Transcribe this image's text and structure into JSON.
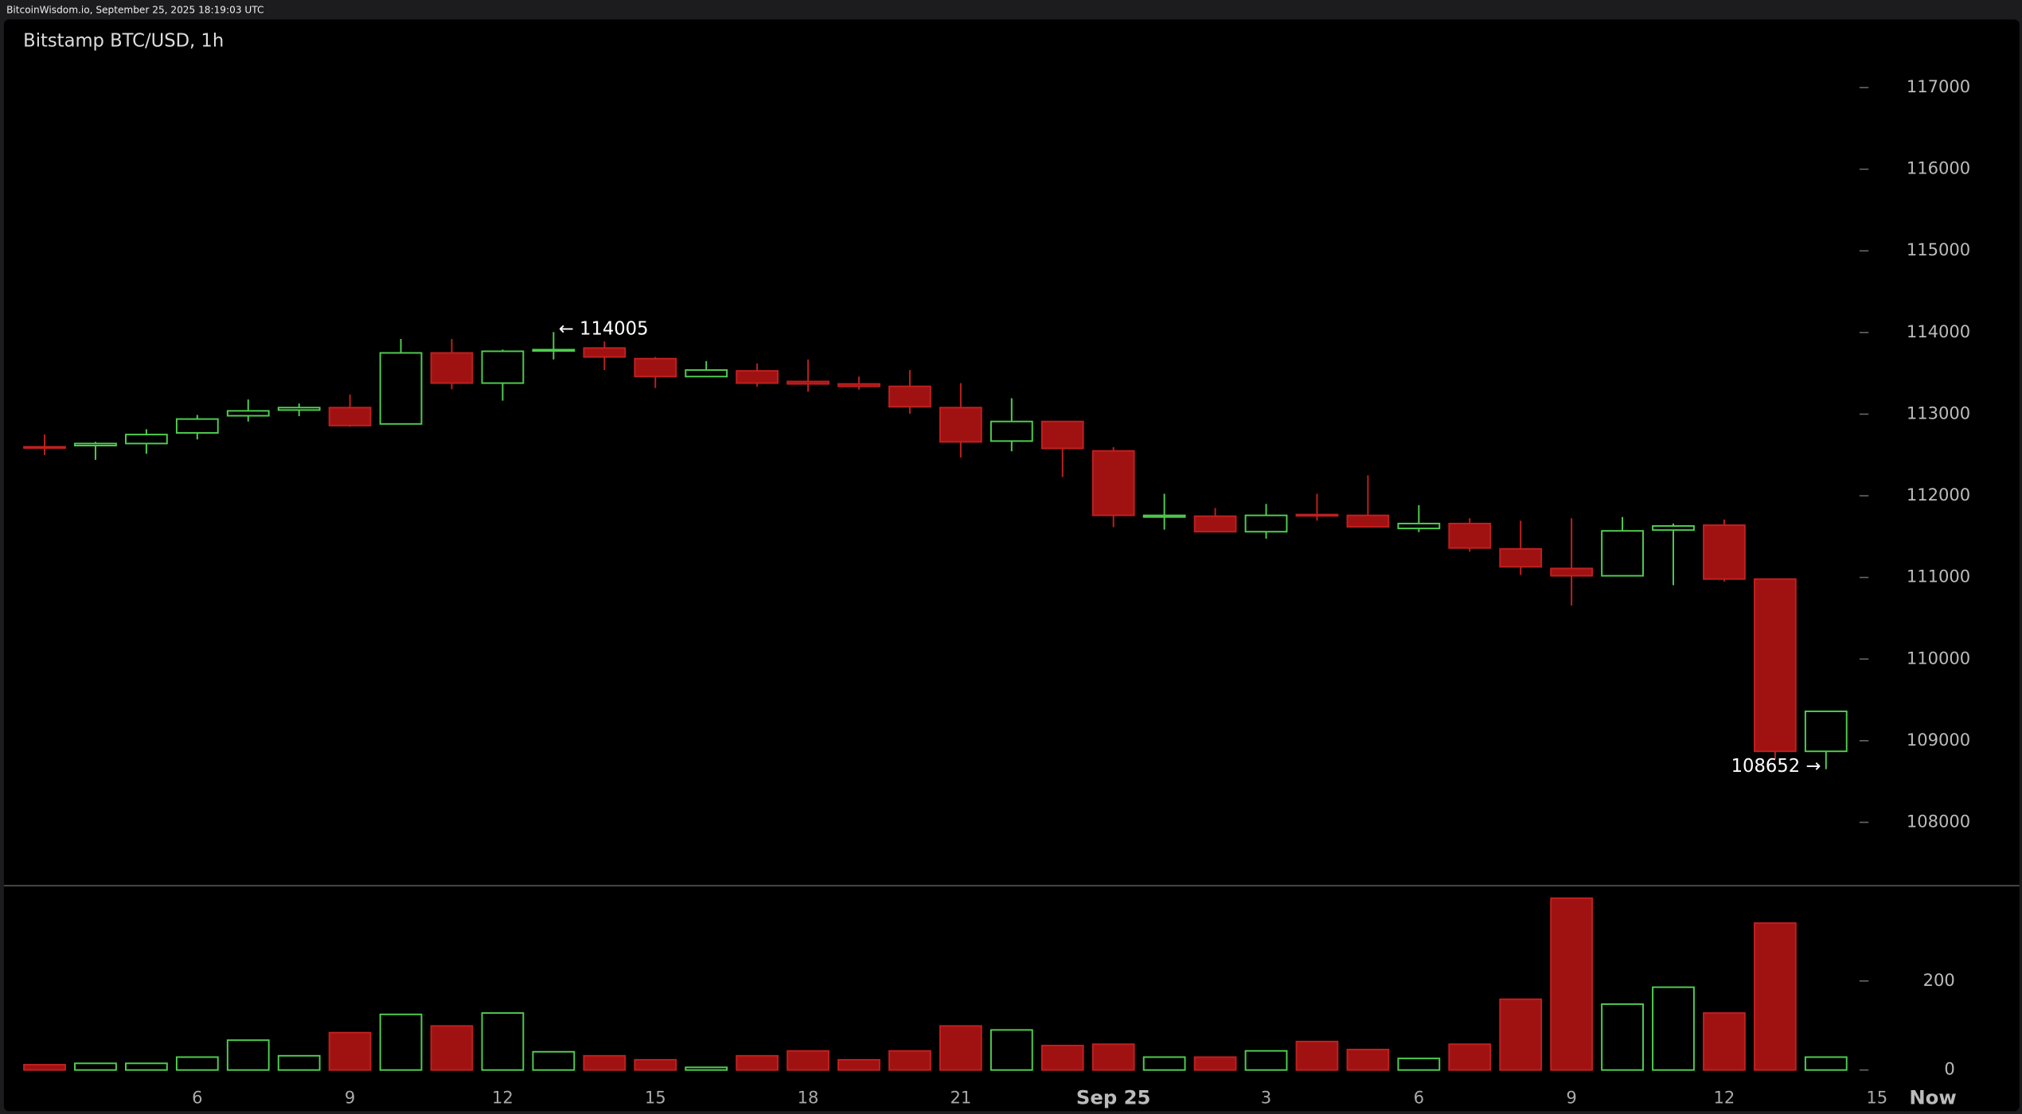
{
  "header": "BitcoinWisdom.io, September 25, 2025 18:19:03 UTC",
  "chart_data": [
    {
      "type": "candlestick",
      "title": "Bitstamp BTC/USD, 1h",
      "x": [
        3,
        4,
        5,
        6,
        7,
        8,
        9,
        10,
        11,
        12,
        13,
        14,
        15,
        16,
        17,
        18,
        19,
        20,
        21,
        22,
        23,
        24,
        25,
        26,
        27,
        28,
        29,
        30,
        31,
        32,
        33,
        34,
        35,
        36,
        37,
        38
      ],
      "open": [
        112600,
        112615,
        112640,
        112770,
        112980,
        113050,
        113080,
        112880,
        113750,
        113380,
        113775,
        113810,
        113680,
        113460,
        113530,
        113400,
        113370,
        113340,
        113080,
        112670,
        112910,
        112550,
        111740,
        111750,
        111560,
        111770,
        111760,
        111600,
        111660,
        111350,
        111110,
        111020,
        111580,
        111640,
        110980,
        108870
      ],
      "high": [
        112750,
        112660,
        112815,
        112990,
        113180,
        113130,
        113240,
        113920,
        113920,
        113790,
        114005,
        113890,
        113700,
        113650,
        113620,
        113670,
        113460,
        113540,
        113380,
        113195,
        112910,
        112595,
        112025,
        111850,
        111900,
        112025,
        112250,
        111885,
        111725,
        111695,
        111725,
        111740,
        111660,
        111710,
        110980,
        109360
      ],
      "low": [
        112500,
        112440,
        112515,
        112690,
        112910,
        112975,
        112845,
        112880,
        113305,
        113165,
        113670,
        113540,
        113320,
        113460,
        113335,
        113275,
        113300,
        113005,
        112470,
        112545,
        112230,
        111615,
        111585,
        111560,
        111475,
        111695,
        111620,
        111555,
        111315,
        111030,
        110655,
        111020,
        110905,
        110950,
        108775,
        108652
      ],
      "close": [
        112590,
        112640,
        112750,
        112940,
        113040,
        113080,
        112860,
        113750,
        113380,
        113770,
        113790,
        113700,
        113460,
        113540,
        113380,
        113370,
        113340,
        113090,
        112660,
        112910,
        112580,
        111760,
        111760,
        111560,
        111760,
        111760,
        111620,
        111660,
        111360,
        111130,
        111020,
        111570,
        111630,
        110980,
        108870,
        109360
      ],
      "up_color": "#4fcf4f",
      "down_color": "#a01212",
      "xlim": [
        2.2,
        41.8
      ],
      "xticks": [
        6,
        9,
        12,
        15,
        18,
        21,
        {
          "value": 24,
          "label": "Sep 25"
        },
        {
          "value": 27,
          "label": "3"
        },
        {
          "value": 30,
          "label": "6"
        },
        {
          "value": 33,
          "label": "9"
        },
        {
          "value": 36,
          "label": "12"
        },
        {
          "value": 39,
          "label": "15"
        },
        {
          "value": 40.1,
          "label": "Now"
        }
      ],
      "ylim": [
        107240,
        117360
      ],
      "yticks": [
        108000,
        109000,
        110000,
        111000,
        112000,
        113000,
        114000,
        115000,
        116000,
        117000
      ],
      "high_label": "← 114005",
      "low_label": "108652 →"
    },
    {
      "type": "bar",
      "title_of": "volume",
      "values": [
        12,
        15,
        15,
        29,
        67,
        32,
        84,
        125,
        99,
        128,
        41,
        32,
        23,
        6,
        32,
        43,
        23,
        43,
        99,
        90,
        55,
        58,
        29,
        29,
        43,
        64,
        46,
        26,
        58,
        159,
        386,
        148,
        186,
        128,
        330,
        29
      ],
      "ylim": [
        0,
        414
      ],
      "yticks": [
        0,
        200
      ]
    }
  ]
}
